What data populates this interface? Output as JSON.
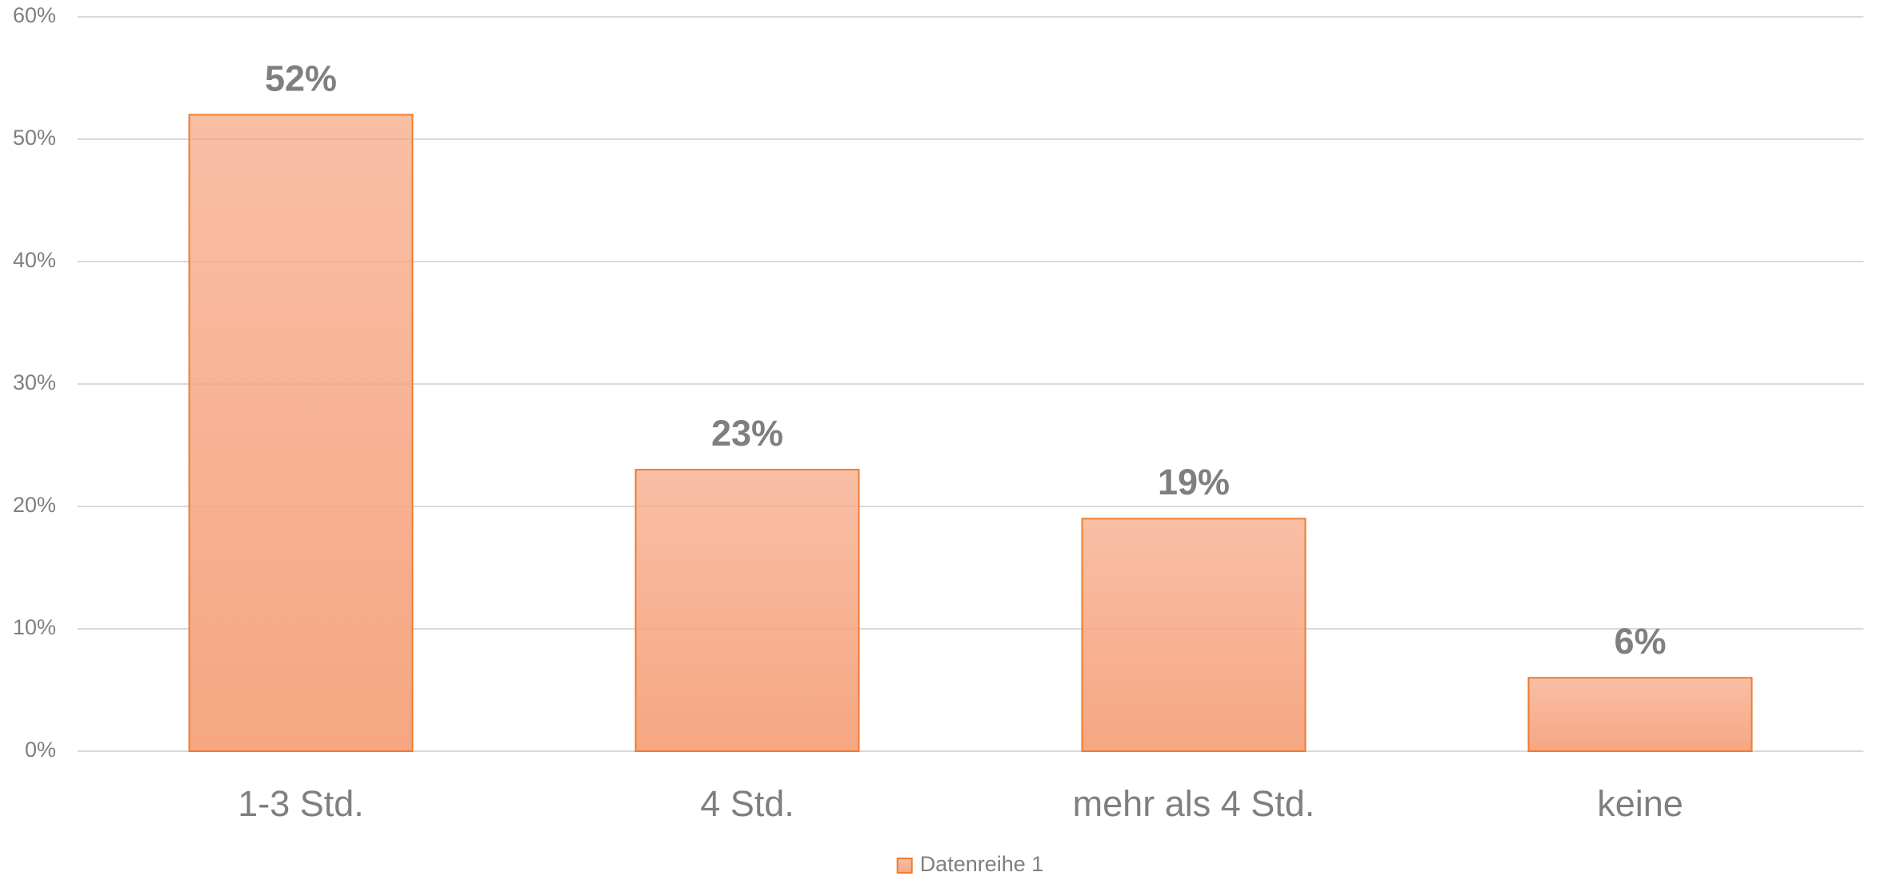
{
  "chart_data": {
    "type": "bar",
    "categories": [
      "1-3 Std.",
      "4 Std.",
      "mehr als 4 Std.",
      "keine"
    ],
    "series": [
      {
        "name": "Datenreihe 1",
        "color": "#f6a682",
        "edgecolor": "#ed7d31",
        "values": [
          52,
          23,
          19,
          6
        ],
        "value_labels": [
          "52%",
          "23%",
          "19%",
          "6%"
        ]
      }
    ],
    "ylim": [
      0,
      60
    ],
    "yticks": [
      {
        "value": 0,
        "label": "0%"
      },
      {
        "value": 10,
        "label": "10%"
      },
      {
        "value": 20,
        "label": "20%"
      },
      {
        "value": 30,
        "label": "30%"
      },
      {
        "value": 40,
        "label": "40%"
      },
      {
        "value": 50,
        "label": "50%"
      },
      {
        "value": 60,
        "label": "60%"
      }
    ],
    "grid": true,
    "legend": "bottom"
  }
}
